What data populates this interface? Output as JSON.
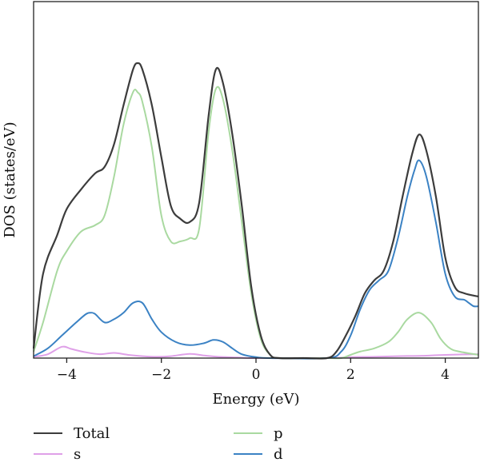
{
  "chart_data": {
    "type": "line",
    "xlabel": "Energy (eV)",
    "ylabel": "DOS (states/eV)",
    "xlim": [
      -4.7,
      4.7
    ],
    "ylim": [
      0,
      1.1
    ],
    "x_ticks": [
      -4,
      -2,
      0,
      2,
      4
    ],
    "x_tick_labels": [
      "−4",
      "−2",
      "0",
      "2",
      "4"
    ],
    "y_ticks_visible": false,
    "grid": false,
    "legend_position": "bottom",
    "series": [
      {
        "name": "Total",
        "color": "#3c3c3c",
        "points": [
          [
            -4.7,
            0.03
          ],
          [
            -4.5,
            0.26
          ],
          [
            -4.2,
            0.38
          ],
          [
            -4.0,
            0.46
          ],
          [
            -3.7,
            0.52
          ],
          [
            -3.4,
            0.57
          ],
          [
            -3.2,
            0.59
          ],
          [
            -3.0,
            0.66
          ],
          [
            -2.8,
            0.78
          ],
          [
            -2.6,
            0.89
          ],
          [
            -2.5,
            0.91
          ],
          [
            -2.4,
            0.89
          ],
          [
            -2.2,
            0.78
          ],
          [
            -2.0,
            0.62
          ],
          [
            -1.8,
            0.47
          ],
          [
            -1.6,
            0.43
          ],
          [
            -1.4,
            0.42
          ],
          [
            -1.2,
            0.48
          ],
          [
            -1.0,
            0.75
          ],
          [
            -0.85,
            0.89
          ],
          [
            -0.7,
            0.85
          ],
          [
            -0.5,
            0.69
          ],
          [
            -0.3,
            0.47
          ],
          [
            -0.1,
            0.22
          ],
          [
            0.1,
            0.07
          ],
          [
            0.3,
            0.01
          ],
          [
            0.5,
            0.0
          ],
          [
            1.0,
            0.0
          ],
          [
            1.5,
            0.0
          ],
          [
            1.7,
            0.02
          ],
          [
            1.9,
            0.07
          ],
          [
            2.1,
            0.13
          ],
          [
            2.3,
            0.2
          ],
          [
            2.5,
            0.24
          ],
          [
            2.7,
            0.27
          ],
          [
            2.9,
            0.36
          ],
          [
            3.1,
            0.5
          ],
          [
            3.3,
            0.63
          ],
          [
            3.45,
            0.69
          ],
          [
            3.6,
            0.64
          ],
          [
            3.8,
            0.5
          ],
          [
            4.0,
            0.31
          ],
          [
            4.2,
            0.22
          ],
          [
            4.4,
            0.2
          ],
          [
            4.7,
            0.19
          ]
        ]
      },
      {
        "name": "p",
        "color": "#a9d9a0",
        "points": [
          [
            -4.7,
            0.02
          ],
          [
            -4.5,
            0.11
          ],
          [
            -4.2,
            0.27
          ],
          [
            -4.0,
            0.33
          ],
          [
            -3.7,
            0.39
          ],
          [
            -3.4,
            0.41
          ],
          [
            -3.2,
            0.44
          ],
          [
            -3.0,
            0.56
          ],
          [
            -2.8,
            0.72
          ],
          [
            -2.6,
            0.82
          ],
          [
            -2.5,
            0.82
          ],
          [
            -2.4,
            0.79
          ],
          [
            -2.2,
            0.65
          ],
          [
            -2.0,
            0.44
          ],
          [
            -1.8,
            0.36
          ],
          [
            -1.6,
            0.36
          ],
          [
            -1.4,
            0.37
          ],
          [
            -1.2,
            0.4
          ],
          [
            -1.0,
            0.7
          ],
          [
            -0.85,
            0.83
          ],
          [
            -0.7,
            0.8
          ],
          [
            -0.5,
            0.64
          ],
          [
            -0.3,
            0.42
          ],
          [
            -0.1,
            0.2
          ],
          [
            0.1,
            0.06
          ],
          [
            0.3,
            0.01
          ],
          [
            0.5,
            0.0
          ],
          [
            1.5,
            0.0
          ],
          [
            1.8,
            0.0
          ],
          [
            2.0,
            0.01
          ],
          [
            2.2,
            0.02
          ],
          [
            2.5,
            0.03
          ],
          [
            2.8,
            0.05
          ],
          [
            3.0,
            0.08
          ],
          [
            3.2,
            0.12
          ],
          [
            3.45,
            0.14
          ],
          [
            3.7,
            0.11
          ],
          [
            3.9,
            0.06
          ],
          [
            4.1,
            0.03
          ],
          [
            4.3,
            0.02
          ],
          [
            4.7,
            0.01
          ]
        ]
      },
      {
        "name": "s",
        "color": "#dfa0e8",
        "points": [
          [
            -4.7,
            0.004
          ],
          [
            -4.4,
            0.012
          ],
          [
            -4.1,
            0.035
          ],
          [
            -3.9,
            0.028
          ],
          [
            -3.6,
            0.018
          ],
          [
            -3.3,
            0.012
          ],
          [
            -3.0,
            0.016
          ],
          [
            -2.7,
            0.01
          ],
          [
            -2.4,
            0.006
          ],
          [
            -2.1,
            0.004
          ],
          [
            -1.8,
            0.006
          ],
          [
            -1.4,
            0.013
          ],
          [
            -1.1,
            0.008
          ],
          [
            -0.8,
            0.004
          ],
          [
            -0.4,
            0.002
          ],
          [
            0.0,
            0.0
          ],
          [
            1.5,
            0.0
          ],
          [
            2.0,
            0.003
          ],
          [
            2.5,
            0.004
          ],
          [
            3.0,
            0.006
          ],
          [
            3.5,
            0.007
          ],
          [
            4.0,
            0.01
          ],
          [
            4.7,
            0.012
          ]
        ]
      },
      {
        "name": "d",
        "color": "#3b82c4",
        "points": [
          [
            -4.7,
            0.006
          ],
          [
            -4.4,
            0.03
          ],
          [
            -4.1,
            0.07
          ],
          [
            -3.8,
            0.11
          ],
          [
            -3.6,
            0.135
          ],
          [
            -3.5,
            0.14
          ],
          [
            -3.4,
            0.136
          ],
          [
            -3.2,
            0.11
          ],
          [
            -3.0,
            0.12
          ],
          [
            -2.8,
            0.14
          ],
          [
            -2.6,
            0.17
          ],
          [
            -2.4,
            0.17
          ],
          [
            -2.2,
            0.12
          ],
          [
            -2.0,
            0.08
          ],
          [
            -1.7,
            0.05
          ],
          [
            -1.4,
            0.04
          ],
          [
            -1.1,
            0.046
          ],
          [
            -0.9,
            0.056
          ],
          [
            -0.7,
            0.05
          ],
          [
            -0.5,
            0.03
          ],
          [
            -0.3,
            0.012
          ],
          [
            0.0,
            0.003
          ],
          [
            0.3,
            0.0
          ],
          [
            1.5,
            0.0
          ],
          [
            1.8,
            0.02
          ],
          [
            2.0,
            0.07
          ],
          [
            2.2,
            0.15
          ],
          [
            2.4,
            0.21
          ],
          [
            2.6,
            0.24
          ],
          [
            2.8,
            0.27
          ],
          [
            3.0,
            0.37
          ],
          [
            3.2,
            0.5
          ],
          [
            3.35,
            0.58
          ],
          [
            3.45,
            0.61
          ],
          [
            3.6,
            0.56
          ],
          [
            3.8,
            0.42
          ],
          [
            4.0,
            0.26
          ],
          [
            4.2,
            0.19
          ],
          [
            4.4,
            0.18
          ],
          [
            4.5,
            0.17
          ],
          [
            4.6,
            0.16
          ],
          [
            4.7,
            0.16
          ]
        ]
      }
    ],
    "legend": [
      {
        "name": "Total",
        "color": "#3c3c3c",
        "col": 0,
        "row": 0
      },
      {
        "name": "s",
        "color": "#dfa0e8",
        "col": 0,
        "row": 1
      },
      {
        "name": "p",
        "color": "#a9d9a0",
        "col": 1,
        "row": 0
      },
      {
        "name": "d",
        "color": "#3b82c4",
        "col": 1,
        "row": 1
      }
    ]
  }
}
